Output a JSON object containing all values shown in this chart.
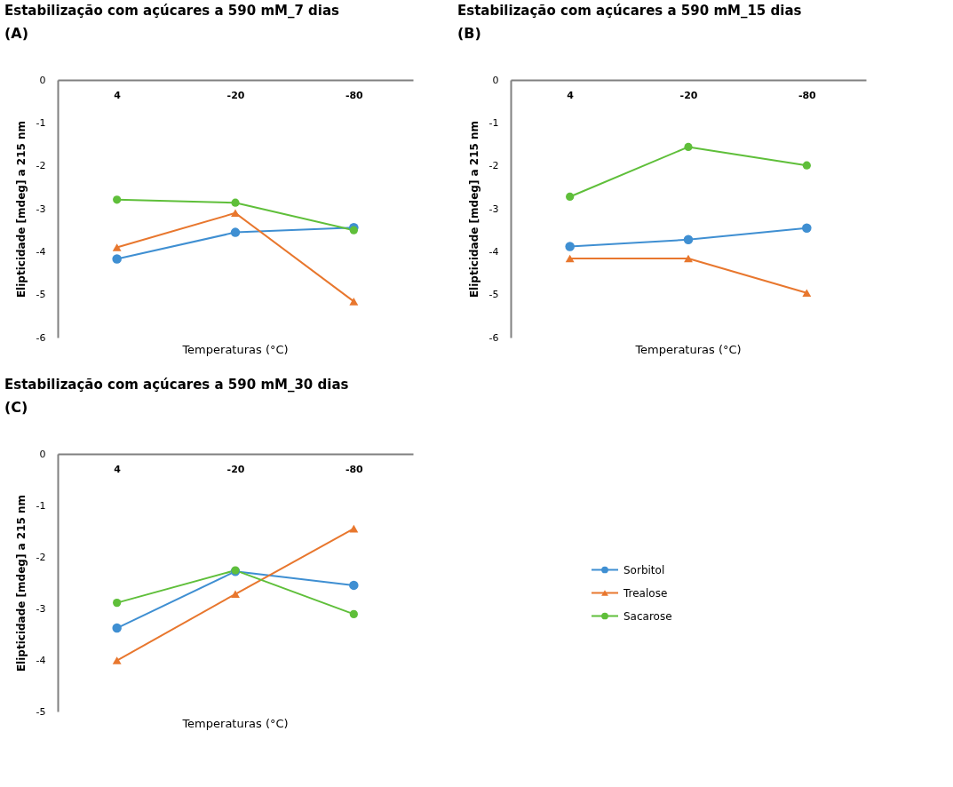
{
  "chart_data": [
    {
      "type": "line",
      "title": "Estabilização com açúcares a 590 mM_7 dias",
      "annotations": [
        "(A)"
      ],
      "xlabel": "Temperaturas (°C)",
      "ylabel": "Elipticidade [mdeg] a 215 nm",
      "categories": [
        "4",
        "-20",
        "-80"
      ],
      "ylim": [
        -6,
        0
      ],
      "yticks": [
        -6,
        -5,
        -4,
        -3,
        -2,
        -1,
        0
      ],
      "grid": false,
      "legend": false,
      "series": [
        {
          "color": "#3f8fd2",
          "marker": "circle",
          "values": [
            -4.17,
            -3.55,
            -3.44
          ]
        },
        {
          "color": "#e8772e",
          "marker": "triangle",
          "values": [
            -3.9,
            -3.1,
            -5.16
          ]
        },
        {
          "color": "#5fbf3a",
          "marker": "circle",
          "values": [
            -2.79,
            -2.86,
            -3.5
          ]
        }
      ]
    },
    {
      "type": "line",
      "title": "Estabilização com açúcares a 590 mM_15 dias",
      "annotations": [
        "(B)"
      ],
      "xlabel": "Temperaturas (°C)",
      "ylabel": "Elipticidade [mdeg] a 215 nm",
      "categories": [
        "4",
        "-20",
        "-80"
      ],
      "ylim": [
        -6,
        0
      ],
      "yticks": [
        -6,
        -5,
        -4,
        -3,
        -2,
        -1,
        0
      ],
      "grid": false,
      "legend": false,
      "series": [
        {
          "color": "#3f8fd2",
          "marker": "circle",
          "values": [
            -3.88,
            -3.72,
            -3.45
          ]
        },
        {
          "color": "#e8772e",
          "marker": "triangle",
          "values": [
            -4.16,
            -4.16,
            -4.96
          ]
        },
        {
          "color": "#5fbf3a",
          "marker": "circle",
          "values": [
            -2.72,
            -1.56,
            -1.99
          ]
        }
      ]
    },
    {
      "type": "line",
      "title": "Estabilização com açúcares a 590 mM_30 dias",
      "annotations": [
        "(C)"
      ],
      "xlabel": "Temperaturas (°C)",
      "ylabel": "Elipticidade [mdeg] a 215 nm",
      "categories": [
        "4",
        "-20",
        "-80"
      ],
      "ylim": [
        -5,
        0
      ],
      "yticks": [
        -5,
        -4,
        -3,
        -2,
        -1,
        0
      ],
      "grid": false,
      "legend": "right",
      "series": [
        {
          "name": "Sorbitol",
          "color": "#3f8fd2",
          "marker": "circle",
          "values": [
            -3.38,
            -2.28,
            -2.55
          ]
        },
        {
          "name": "Trealose",
          "color": "#e8772e",
          "marker": "triangle",
          "values": [
            -4.01,
            -2.72,
            -1.45
          ]
        },
        {
          "name": "Sacarose",
          "color": "#5fbf3a",
          "marker": "circle",
          "values": [
            -2.89,
            -2.26,
            -3.11
          ]
        }
      ]
    }
  ]
}
